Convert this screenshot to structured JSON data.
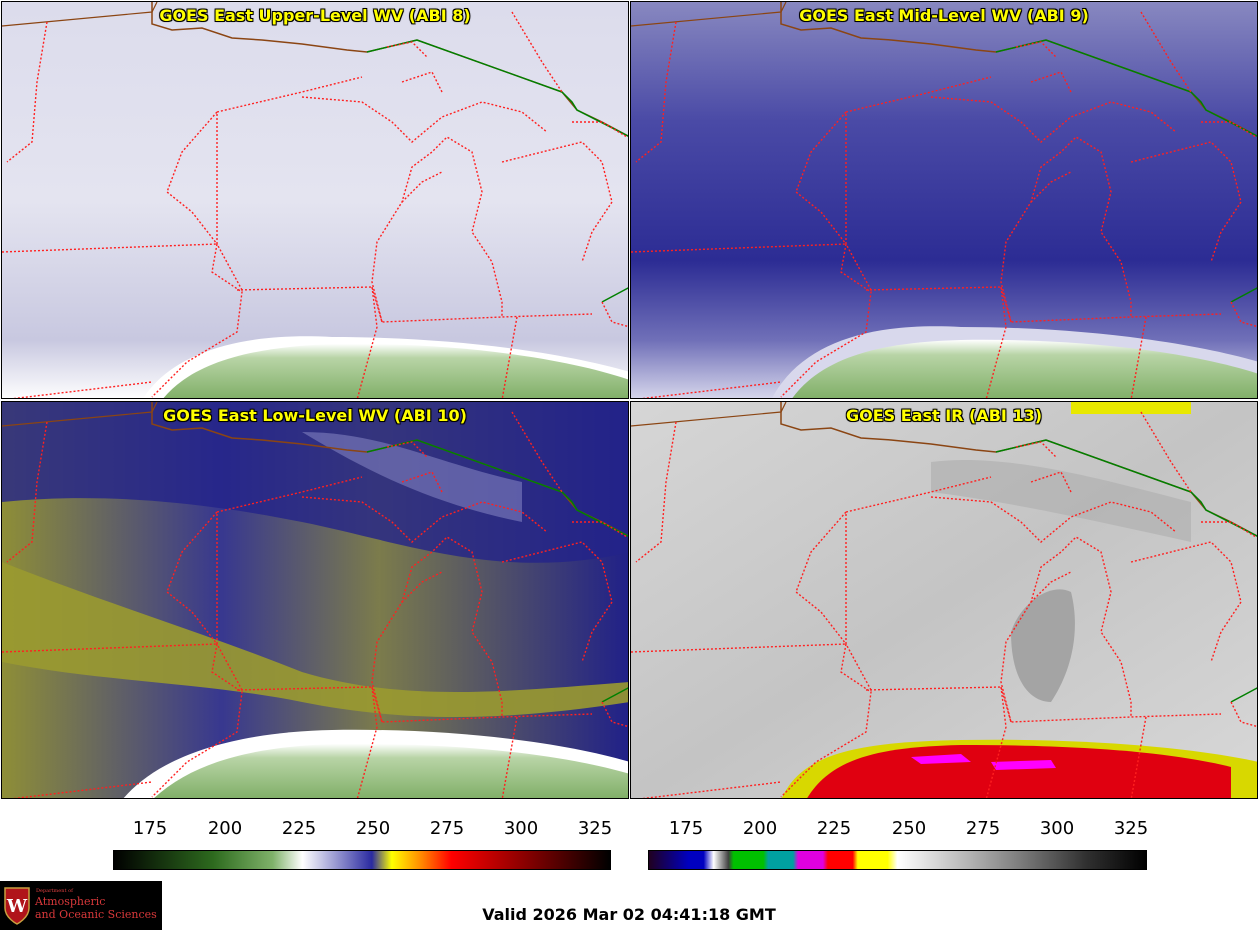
{
  "panels": [
    {
      "title": "GOES East Upper-Level WV (ABI 8)"
    },
    {
      "title": "GOES East Mid-Level WV (ABI 9)"
    },
    {
      "title": "GOES East Low-Level WV (ABI 10)"
    },
    {
      "title": "GOES East IR (ABI 13)"
    }
  ],
  "colorbars": [
    {
      "name": "water-vapor-colorbar",
      "ticks": [
        "175",
        "200",
        "225",
        "250",
        "275",
        "300",
        "325"
      ],
      "colors": [
        "#000000",
        "#2d6a1e",
        "#7fb26a",
        "#ffffff",
        "#2a2aa0",
        "#ffff00",
        "#ff8800",
        "#ff0000",
        "#800000",
        "#000000"
      ]
    },
    {
      "name": "ir-colorbar",
      "ticks": [
        "175",
        "200",
        "225",
        "250",
        "275",
        "300",
        "325"
      ],
      "colors": [
        "#200020",
        "#0000c0",
        "#ffffff",
        "#00c000",
        "#00a0a0",
        "#e000e0",
        "#ff0000",
        "#ffff00",
        "#ffffff",
        "#808080",
        "#000000"
      ]
    }
  ],
  "colors": {
    "state_borders": "#ff2020",
    "country_border": "#008000",
    "coastline": "#8b4513",
    "title_text": "#ffff00"
  },
  "logo": {
    "dept": "Department of",
    "line1": "Atmospheric",
    "line2": "and Oceanic Sciences"
  },
  "valid_time": "Valid 2026 Mar 02 04:41:18 GMT"
}
